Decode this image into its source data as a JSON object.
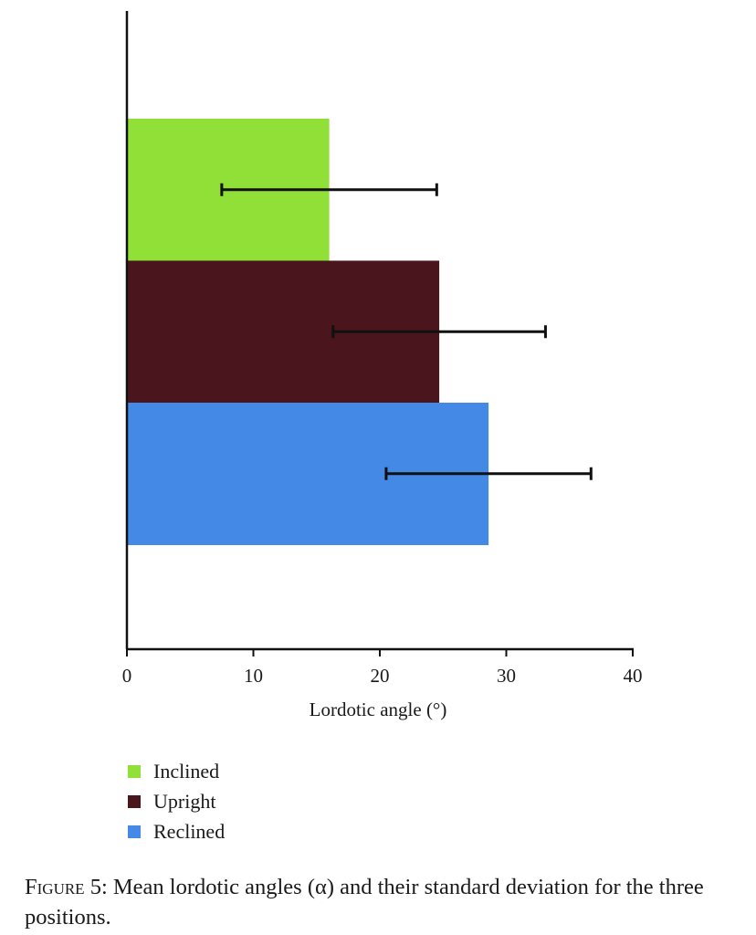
{
  "chart_data": {
    "type": "bar",
    "orientation": "horizontal",
    "categories": [
      "Inclined",
      "Upright",
      "Reclined"
    ],
    "series": [
      {
        "values": [
          16.0,
          24.7,
          28.6
        ],
        "error": [
          8.5,
          8.4,
          8.1
        ]
      }
    ],
    "colors": [
      "#90e038",
      "#4a151d",
      "#4589e6"
    ],
    "xlabel": "Lordotic angle (°)",
    "xlim": [
      0,
      40
    ],
    "xticks": [
      0,
      10,
      20,
      30,
      40
    ],
    "legend_position": "bottom-left",
    "grid": false
  },
  "legend": {
    "items": [
      {
        "label": "Inclined",
        "color": "#90e038"
      },
      {
        "label": "Upright",
        "color": "#4a151d"
      },
      {
        "label": "Reclined",
        "color": "#4589e6"
      }
    ]
  },
  "caption": {
    "label": "Figure 5:",
    "text": "Mean lordotic angles (α) and their standard deviation for the three positions."
  }
}
